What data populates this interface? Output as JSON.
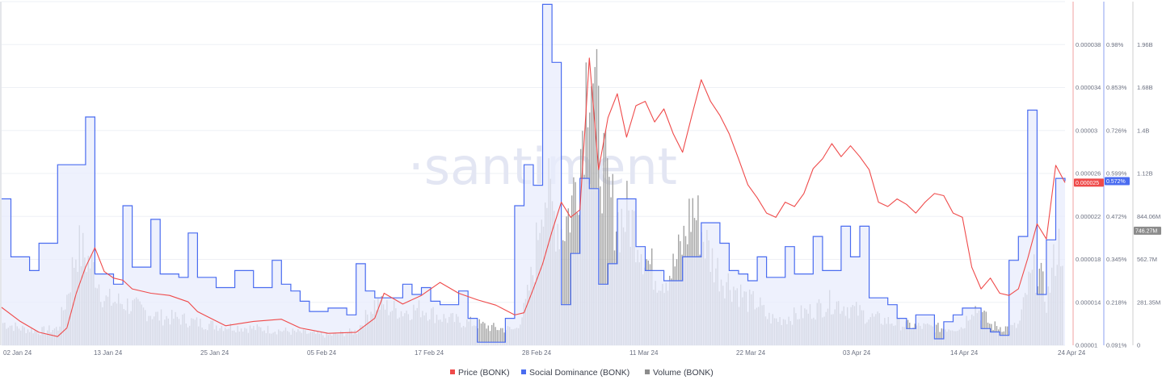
{
  "watermark": "·santiment",
  "colors": {
    "price": "#ef4a4a",
    "social": "#4a6cf0",
    "social_fill": "#e8ecfc",
    "volume": "#a4a4a4",
    "volume_badge": "#8c8c8c"
  },
  "chart_data": {
    "type": "line",
    "x_labels": [
      "02 Jan 24",
      "13 Jan 24",
      "25 Jan 24",
      "05 Feb 24",
      "17 Feb 24",
      "28 Feb 24",
      "11 Mar 24",
      "22 Mar 24",
      "03 Apr 24",
      "14 Apr 24",
      "24 Apr 24"
    ],
    "x_range": [
      "2024-01-01",
      "2024-04-24"
    ],
    "axes": {
      "price": {
        "ticks": [
          "0.00001",
          "0.000014",
          "0.000018",
          "0.000022",
          "0.000026",
          "0.00003",
          "0.000034",
          "0.000038"
        ],
        "ylim": [
          1e-05,
          4.17e-05
        ]
      },
      "social": {
        "ticks": [
          "0.091%",
          "0.218%",
          "0.345%",
          "0.472%",
          "0.599%",
          "0.726%",
          "0.853%",
          "0.98%"
        ],
        "ylim": [
          0.091,
          1.098
        ]
      },
      "volume": {
        "ticks": [
          "0",
          "281.35M",
          "562.7M",
          "844.06M",
          "1.12B",
          "1.4B",
          "1.68B",
          "1.96B"
        ],
        "ylim": [
          0,
          2.25
        ]
      }
    },
    "current_values": {
      "price": "0.000025",
      "social": "0.572%",
      "volume": "746.27M"
    },
    "series": [
      {
        "name": "Price (BONK)",
        "unit": "USD",
        "points": [
          [
            "2024-01-01",
            1.35e-05
          ],
          [
            "2024-01-03",
            1.22e-05
          ],
          [
            "2024-01-05",
            1.12e-05
          ],
          [
            "2024-01-07",
            1.08e-05
          ],
          [
            "2024-01-08",
            1.16e-05
          ],
          [
            "2024-01-09",
            1.48e-05
          ],
          [
            "2024-01-10",
            1.72e-05
          ],
          [
            "2024-01-11",
            1.9e-05
          ],
          [
            "2024-01-12",
            1.68e-05
          ],
          [
            "2024-01-13",
            1.62e-05
          ],
          [
            "2024-01-14",
            1.6e-05
          ],
          [
            "2024-01-15",
            1.52e-05
          ],
          [
            "2024-01-17",
            1.48e-05
          ],
          [
            "2024-01-19",
            1.46e-05
          ],
          [
            "2024-01-21",
            1.4e-05
          ],
          [
            "2024-01-22",
            1.31e-05
          ],
          [
            "2024-01-25",
            1.18e-05
          ],
          [
            "2024-01-28",
            1.22e-05
          ],
          [
            "2024-01-31",
            1.24e-05
          ],
          [
            "2024-02-02",
            1.16e-05
          ],
          [
            "2024-02-05",
            1.11e-05
          ],
          [
            "2024-02-08",
            1.12e-05
          ],
          [
            "2024-02-10",
            1.25e-05
          ],
          [
            "2024-02-11",
            1.48e-05
          ],
          [
            "2024-02-13",
            1.38e-05
          ],
          [
            "2024-02-15",
            1.46e-05
          ],
          [
            "2024-02-17",
            1.58e-05
          ],
          [
            "2024-02-19",
            1.48e-05
          ],
          [
            "2024-02-21",
            1.42e-05
          ],
          [
            "2024-02-23",
            1.37e-05
          ],
          [
            "2024-02-25",
            1.28e-05
          ],
          [
            "2024-02-26",
            1.3e-05
          ],
          [
            "2024-02-27",
            1.52e-05
          ],
          [
            "2024-02-28",
            1.75e-05
          ],
          [
            "2024-02-29",
            2.05e-05
          ],
          [
            "2024-03-01",
            2.32e-05
          ],
          [
            "2024-03-02",
            2.18e-05
          ],
          [
            "2024-03-03",
            2.25e-05
          ],
          [
            "2024-03-04",
            3.65e-05
          ],
          [
            "2024-03-05",
            2.62e-05
          ],
          [
            "2024-03-06",
            3.1e-05
          ],
          [
            "2024-03-07",
            3.32e-05
          ],
          [
            "2024-03-08",
            2.92e-05
          ],
          [
            "2024-03-09",
            3.21e-05
          ],
          [
            "2024-03-10",
            3.25e-05
          ],
          [
            "2024-03-11",
            3.06e-05
          ],
          [
            "2024-03-12",
            3.18e-05
          ],
          [
            "2024-03-13",
            2.95e-05
          ],
          [
            "2024-03-14",
            2.78e-05
          ],
          [
            "2024-03-15",
            3.12e-05
          ],
          [
            "2024-03-16",
            3.45e-05
          ],
          [
            "2024-03-17",
            3.25e-05
          ],
          [
            "2024-03-18",
            3.12e-05
          ],
          [
            "2024-03-19",
            2.95e-05
          ],
          [
            "2024-03-20",
            2.72e-05
          ],
          [
            "2024-03-21",
            2.48e-05
          ],
          [
            "2024-03-22",
            2.36e-05
          ],
          [
            "2024-03-23",
            2.22e-05
          ],
          [
            "2024-03-24",
            2.18e-05
          ],
          [
            "2024-03-25",
            2.32e-05
          ],
          [
            "2024-03-26",
            2.28e-05
          ],
          [
            "2024-03-27",
            2.4e-05
          ],
          [
            "2024-03-28",
            2.63e-05
          ],
          [
            "2024-03-29",
            2.72e-05
          ],
          [
            "2024-03-30",
            2.86e-05
          ],
          [
            "2024-03-31",
            2.74e-05
          ],
          [
            "2024-04-01",
            2.84e-05
          ],
          [
            "2024-04-02",
            2.74e-05
          ],
          [
            "2024-04-03",
            2.62e-05
          ],
          [
            "2024-04-04",
            2.32e-05
          ],
          [
            "2024-04-05",
            2.28e-05
          ],
          [
            "2024-04-06",
            2.35e-05
          ],
          [
            "2024-04-07",
            2.3e-05
          ],
          [
            "2024-04-08",
            2.22e-05
          ],
          [
            "2024-04-09",
            2.32e-05
          ],
          [
            "2024-04-10",
            2.4e-05
          ],
          [
            "2024-04-11",
            2.38e-05
          ],
          [
            "2024-04-12",
            2.22e-05
          ],
          [
            "2024-04-13",
            2.18e-05
          ],
          [
            "2024-04-14",
            1.72e-05
          ],
          [
            "2024-04-15",
            1.52e-05
          ],
          [
            "2024-04-16",
            1.62e-05
          ],
          [
            "2024-04-17",
            1.48e-05
          ],
          [
            "2024-04-18",
            1.46e-05
          ],
          [
            "2024-04-19",
            1.52e-05
          ],
          [
            "2024-04-20",
            1.8e-05
          ],
          [
            "2024-04-21",
            2.12e-05
          ],
          [
            "2024-04-22",
            1.98e-05
          ],
          [
            "2024-04-23",
            2.66e-05
          ],
          [
            "2024-04-24",
            2.5e-05
          ]
        ]
      },
      {
        "name": "Social Dominance (BONK)",
        "unit": "%",
        "points": [
          [
            "2024-01-01",
            0.52
          ],
          [
            "2024-01-02",
            0.35
          ],
          [
            "2024-01-04",
            0.31
          ],
          [
            "2024-01-05",
            0.39
          ],
          [
            "2024-01-07",
            0.62
          ],
          [
            "2024-01-10",
            0.76
          ],
          [
            "2024-01-11",
            0.3
          ],
          [
            "2024-01-13",
            0.27
          ],
          [
            "2024-01-14",
            0.5
          ],
          [
            "2024-01-15",
            0.32
          ],
          [
            "2024-01-17",
            0.46
          ],
          [
            "2024-01-18",
            0.3
          ],
          [
            "2024-01-20",
            0.29
          ],
          [
            "2024-01-21",
            0.42
          ],
          [
            "2024-01-22",
            0.29
          ],
          [
            "2024-01-24",
            0.26
          ],
          [
            "2024-01-26",
            0.31
          ],
          [
            "2024-01-28",
            0.26
          ],
          [
            "2024-01-30",
            0.34
          ],
          [
            "2024-01-31",
            0.27
          ],
          [
            "2024-02-01",
            0.25
          ],
          [
            "2024-02-02",
            0.22
          ],
          [
            "2024-02-03",
            0.19
          ],
          [
            "2024-02-05",
            0.2
          ],
          [
            "2024-02-07",
            0.18
          ],
          [
            "2024-02-08",
            0.33
          ],
          [
            "2024-02-09",
            0.25
          ],
          [
            "2024-02-10",
            0.23
          ],
          [
            "2024-02-13",
            0.27
          ],
          [
            "2024-02-14",
            0.24
          ],
          [
            "2024-02-15",
            0.26
          ],
          [
            "2024-02-16",
            0.22
          ],
          [
            "2024-02-17",
            0.21
          ],
          [
            "2024-02-19",
            0.25
          ],
          [
            "2024-02-20",
            0.17
          ],
          [
            "2024-02-21",
            0.1
          ],
          [
            "2024-02-24",
            0.17
          ],
          [
            "2024-02-25",
            0.5
          ],
          [
            "2024-02-26",
            0.62
          ],
          [
            "2024-02-27",
            0.56
          ],
          [
            "2024-02-28",
            1.09
          ],
          [
            "2024-02-29",
            0.92
          ],
          [
            "2024-03-01",
            0.21
          ],
          [
            "2024-03-02",
            0.36
          ],
          [
            "2024-03-03",
            0.58
          ],
          [
            "2024-03-04",
            0.55
          ],
          [
            "2024-03-05",
            0.27
          ],
          [
            "2024-03-06",
            0.33
          ],
          [
            "2024-03-07",
            0.52
          ],
          [
            "2024-03-09",
            0.38
          ],
          [
            "2024-03-10",
            0.31
          ],
          [
            "2024-03-12",
            0.28
          ],
          [
            "2024-03-14",
            0.35
          ],
          [
            "2024-03-16",
            0.45
          ],
          [
            "2024-03-18",
            0.39
          ],
          [
            "2024-03-19",
            0.31
          ],
          [
            "2024-03-20",
            0.3
          ],
          [
            "2024-03-21",
            0.28
          ],
          [
            "2024-03-22",
            0.35
          ],
          [
            "2024-03-23",
            0.29
          ],
          [
            "2024-03-25",
            0.38
          ],
          [
            "2024-03-26",
            0.3
          ],
          [
            "2024-03-28",
            0.41
          ],
          [
            "2024-03-29",
            0.31
          ],
          [
            "2024-03-31",
            0.44
          ],
          [
            "2024-04-01",
            0.35
          ],
          [
            "2024-04-02",
            0.44
          ],
          [
            "2024-04-03",
            0.23
          ],
          [
            "2024-04-05",
            0.21
          ],
          [
            "2024-04-06",
            0.17
          ],
          [
            "2024-04-07",
            0.14
          ],
          [
            "2024-04-08",
            0.18
          ],
          [
            "2024-04-10",
            0.11
          ],
          [
            "2024-04-11",
            0.16
          ],
          [
            "2024-04-12",
            0.18
          ],
          [
            "2024-04-13",
            0.2
          ],
          [
            "2024-04-15",
            0.14
          ],
          [
            "2024-04-16",
            0.13
          ],
          [
            "2024-04-17",
            0.12
          ],
          [
            "2024-04-18",
            0.34
          ],
          [
            "2024-04-19",
            0.41
          ],
          [
            "2024-04-20",
            0.78
          ],
          [
            "2024-04-21",
            0.24
          ],
          [
            "2024-04-22",
            0.4
          ],
          [
            "2024-04-23",
            0.58
          ],
          [
            "2024-04-24",
            0.572
          ]
        ]
      },
      {
        "name": "Volume (BONK)",
        "unit": "B",
        "points": [
          [
            "2024-01-01",
            0.16
          ],
          [
            "2024-01-03",
            0.12
          ],
          [
            "2024-01-05",
            0.1
          ],
          [
            "2024-01-07",
            0.12
          ],
          [
            "2024-01-08",
            0.36
          ],
          [
            "2024-01-09",
            0.7
          ],
          [
            "2024-01-10",
            0.62
          ],
          [
            "2024-01-11",
            0.52
          ],
          [
            "2024-01-12",
            0.32
          ],
          [
            "2024-01-14",
            0.3
          ],
          [
            "2024-01-16",
            0.25
          ],
          [
            "2024-01-18",
            0.2
          ],
          [
            "2024-01-20",
            0.19
          ],
          [
            "2024-01-22",
            0.16
          ],
          [
            "2024-01-24",
            0.14
          ],
          [
            "2024-01-26",
            0.13
          ],
          [
            "2024-01-28",
            0.12
          ],
          [
            "2024-01-30",
            0.11
          ],
          [
            "2024-02-02",
            0.09
          ],
          [
            "2024-02-05",
            0.07
          ],
          [
            "2024-02-08",
            0.1
          ],
          [
            "2024-02-10",
            0.3
          ],
          [
            "2024-02-11",
            0.27
          ],
          [
            "2024-02-13",
            0.24
          ],
          [
            "2024-02-15",
            0.26
          ],
          [
            "2024-02-17",
            0.2
          ],
          [
            "2024-02-19",
            0.17
          ],
          [
            "2024-02-21",
            0.15
          ],
          [
            "2024-02-23",
            0.12
          ],
          [
            "2024-02-25",
            0.11
          ],
          [
            "2024-02-26",
            0.25
          ],
          [
            "2024-02-27",
            0.55
          ],
          [
            "2024-02-28",
            1.15
          ],
          [
            "2024-02-29",
            0.95
          ],
          [
            "2024-03-01",
            0.82
          ],
          [
            "2024-03-02",
            0.98
          ],
          [
            "2024-03-03",
            1.38
          ],
          [
            "2024-03-04",
            2.2
          ],
          [
            "2024-03-05",
            1.45
          ],
          [
            "2024-03-06",
            1.05
          ],
          [
            "2024-03-07",
            0.88
          ],
          [
            "2024-03-08",
            0.92
          ],
          [
            "2024-03-09",
            0.82
          ],
          [
            "2024-03-10",
            0.62
          ],
          [
            "2024-03-11",
            0.5
          ],
          [
            "2024-03-12",
            0.48
          ],
          [
            "2024-03-13",
            0.55
          ],
          [
            "2024-03-14",
            0.72
          ],
          [
            "2024-03-15",
            0.98
          ],
          [
            "2024-03-16",
            0.8
          ],
          [
            "2024-03-17",
            0.62
          ],
          [
            "2024-03-18",
            0.5
          ],
          [
            "2024-03-19",
            0.44
          ],
          [
            "2024-03-20",
            0.38
          ],
          [
            "2024-03-21",
            0.31
          ],
          [
            "2024-03-22",
            0.3
          ],
          [
            "2024-03-23",
            0.2
          ],
          [
            "2024-03-24",
            0.18
          ],
          [
            "2024-03-26",
            0.21
          ],
          [
            "2024-03-28",
            0.25
          ],
          [
            "2024-03-30",
            0.31
          ],
          [
            "2024-04-01",
            0.26
          ],
          [
            "2024-04-03",
            0.2
          ],
          [
            "2024-04-05",
            0.17
          ],
          [
            "2024-04-07",
            0.14
          ],
          [
            "2024-04-09",
            0.13
          ],
          [
            "2024-04-11",
            0.12
          ],
          [
            "2024-04-13",
            0.13
          ],
          [
            "2024-04-14",
            0.28
          ],
          [
            "2024-04-15",
            0.23
          ],
          [
            "2024-04-16",
            0.14
          ],
          [
            "2024-04-18",
            0.12
          ],
          [
            "2024-04-19",
            0.14
          ],
          [
            "2024-04-20",
            0.42
          ],
          [
            "2024-04-21",
            0.55
          ],
          [
            "2024-04-22",
            0.3
          ],
          [
            "2024-04-23",
            0.68
          ],
          [
            "2024-04-24",
            0.75
          ]
        ]
      }
    ]
  }
}
